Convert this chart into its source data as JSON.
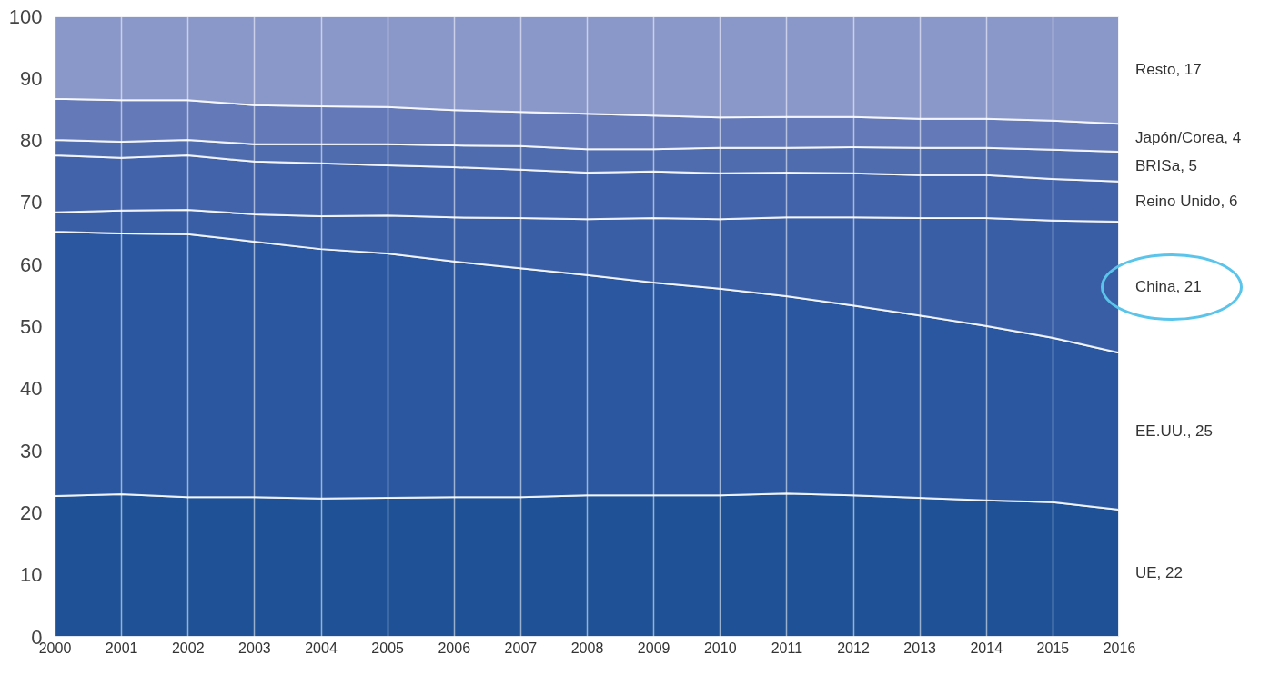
{
  "chart_data": {
    "type": "area",
    "stacked": true,
    "x": [
      2000,
      2001,
      2002,
      2003,
      2004,
      2005,
      2006,
      2007,
      2008,
      2009,
      2010,
      2011,
      2012,
      2013,
      2014,
      2015,
      2016
    ],
    "series": [
      {
        "name": "UE, 22",
        "color": "#1e5196",
        "values": [
          22.7,
          23.0,
          22.5,
          22.5,
          22.3,
          22.4,
          22.5,
          22.5,
          22.8,
          22.8,
          22.8,
          23.1,
          22.8,
          22.4,
          22.0,
          21.7,
          20.5
        ]
      },
      {
        "name": "EE.UU., 25",
        "color": "#2a579f",
        "values": [
          42.6,
          42.0,
          42.4,
          41.2,
          40.2,
          39.4,
          38.0,
          36.9,
          35.5,
          34.3,
          33.3,
          31.8,
          30.6,
          29.4,
          28.1,
          26.5,
          25.3
        ]
      },
      {
        "name": "China, 21",
        "color": "#3a5ea6",
        "values": [
          3.1,
          3.7,
          3.9,
          4.4,
          5.3,
          6.1,
          7.1,
          8.1,
          9.0,
          10.4,
          11.2,
          12.7,
          14.2,
          15.7,
          17.4,
          18.9,
          21.1
        ]
      },
      {
        "name": "Reino Unido, 6",
        "color": "#4263a9",
        "values": [
          9.2,
          8.5,
          8.8,
          8.5,
          8.5,
          8.1,
          8.1,
          7.8,
          7.5,
          7.5,
          7.4,
          7.2,
          7.1,
          6.9,
          6.9,
          6.7,
          6.5
        ]
      },
      {
        "name": "BRISa, 5",
        "color": "#4f6caf",
        "values": [
          2.5,
          2.6,
          2.5,
          2.8,
          3.1,
          3.4,
          3.5,
          3.8,
          3.8,
          3.6,
          4.1,
          4.0,
          4.2,
          4.4,
          4.4,
          4.7,
          4.8
        ]
      },
      {
        "name": "Japón/Corea, 4",
        "color": "#6479b7",
        "values": [
          6.6,
          6.7,
          6.4,
          6.3,
          6.1,
          6.0,
          5.7,
          5.5,
          5.7,
          5.4,
          4.9,
          5.0,
          4.9,
          4.7,
          4.7,
          4.7,
          4.5
        ]
      },
      {
        "name": "Resto, 17",
        "color": "#8a97c9",
        "values": [
          13.3,
          13.5,
          13.5,
          14.3,
          14.5,
          14.6,
          15.1,
          15.4,
          15.7,
          16.0,
          16.3,
          16.2,
          16.2,
          16.5,
          16.5,
          16.8,
          17.3
        ]
      }
    ],
    "xlim": [
      2000,
      2016
    ],
    "xticks": [
      2000,
      2001,
      2002,
      2003,
      2004,
      2005,
      2006,
      2007,
      2008,
      2009,
      2010,
      2011,
      2012,
      2013,
      2014,
      2015,
      2016
    ],
    "ylim": [
      0,
      100
    ],
    "yticks": [
      0,
      10,
      20,
      30,
      40,
      50,
      60,
      70,
      80,
      90,
      100
    ],
    "grid": "x"
  }
}
